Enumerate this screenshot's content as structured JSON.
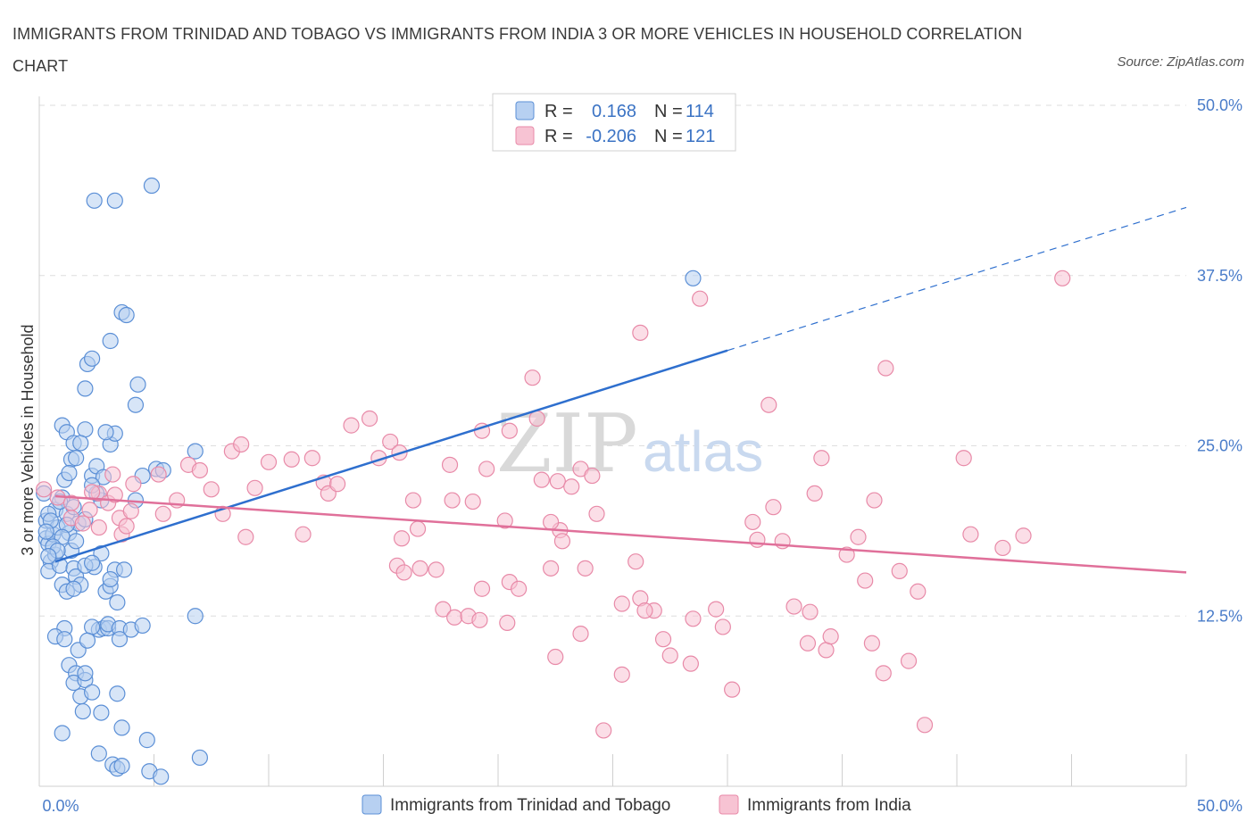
{
  "title": "IMMIGRANTS FROM TRINIDAD AND TOBAGO VS IMMIGRANTS FROM INDIA 3 OR MORE VEHICLES IN HOUSEHOLD CORRELATION CHART",
  "source": "Source: ZipAtlas.com",
  "watermark": {
    "zip": "ZIP",
    "atlas": "atlas"
  },
  "colors": {
    "blue": "#5b8fd6",
    "blue_fill": "#b7d0f1",
    "blue_line": "#2e6fce",
    "pink": "#e88aa8",
    "pink_fill": "#f7c3d3",
    "pink_line": "#e0709a"
  },
  "legend": {
    "r_label": "R =",
    "n_label": "N =",
    "items": [
      {
        "r": "0.168",
        "n": "114"
      },
      {
        "r": "-0.206",
        "n": "121"
      }
    ]
  },
  "chart_data": {
    "type": "scatter",
    "xlabel": "",
    "ylabel": "3 or more Vehicles in Household",
    "xlim": [
      0,
      50
    ],
    "ylim": [
      0,
      50
    ],
    "x_ticks": [
      "0.0%",
      "50.0%"
    ],
    "y_ticks": [
      "12.5%",
      "25.0%",
      "37.5%",
      "50.0%"
    ],
    "series": [
      {
        "name": "Immigrants from Trinidad and Tobago",
        "color": "#5b8fd6",
        "trend": {
          "x0": 0.7,
          "y0": 16.5,
          "x1": 30,
          "y1": 32,
          "dash_to_x": 50,
          "dash_to_y": 42.5
        },
        "points": [
          [
            0.3,
            19.5
          ],
          [
            0.3,
            18.2
          ],
          [
            0.4,
            17.8
          ],
          [
            0.5,
            16.5
          ],
          [
            0.4,
            15.8
          ],
          [
            0.6,
            18.5
          ],
          [
            0.7,
            20.3
          ],
          [
            0.8,
            19.0
          ],
          [
            0.7,
            17.0
          ],
          [
            0.9,
            16.2
          ],
          [
            1.0,
            21.2
          ],
          [
            1.1,
            22.5
          ],
          [
            1.2,
            20.0
          ],
          [
            1.3,
            18.6
          ],
          [
            1.4,
            17.3
          ],
          [
            1.5,
            16.0
          ],
          [
            1.6,
            15.4
          ],
          [
            1.0,
            14.8
          ],
          [
            1.2,
            14.3
          ],
          [
            1.7,
            19.3
          ],
          [
            1.0,
            26.5
          ],
          [
            1.2,
            26.0
          ],
          [
            1.5,
            25.2
          ],
          [
            1.4,
            24.0
          ],
          [
            1.6,
            24.1
          ],
          [
            2.0,
            26.2
          ],
          [
            1.8,
            25.2
          ],
          [
            2.0,
            29.2
          ],
          [
            2.1,
            31.0
          ],
          [
            2.3,
            31.4
          ],
          [
            1.3,
            23.0
          ],
          [
            2.3,
            22.8
          ],
          [
            2.5,
            23.5
          ],
          [
            2.8,
            22.7
          ],
          [
            3.1,
            25.1
          ],
          [
            3.3,
            25.9
          ],
          [
            3.1,
            32.7
          ],
          [
            3.6,
            34.8
          ],
          [
            3.8,
            34.6
          ],
          [
            4.3,
            29.5
          ],
          [
            4.2,
            28.0
          ],
          [
            4.2,
            21.0
          ],
          [
            4.5,
            22.8
          ],
          [
            5.1,
            23.3
          ],
          [
            5.4,
            23.2
          ],
          [
            6.8,
            24.6
          ],
          [
            2.9,
            26.0
          ],
          [
            2.4,
            16.1
          ],
          [
            2.7,
            17.1
          ],
          [
            3.3,
            15.9
          ],
          [
            2.9,
            14.3
          ],
          [
            3.1,
            14.7
          ],
          [
            3.4,
            13.5
          ],
          [
            3.1,
            15.2
          ],
          [
            2.0,
            16.2
          ],
          [
            1.8,
            14.8
          ],
          [
            1.5,
            14.5
          ],
          [
            1.1,
            11.6
          ],
          [
            0.7,
            11.0
          ],
          [
            1.1,
            10.8
          ],
          [
            1.7,
            10.0
          ],
          [
            1.3,
            8.9
          ],
          [
            1.6,
            8.3
          ],
          [
            1.5,
            7.6
          ],
          [
            2.0,
            7.8
          ],
          [
            2.0,
            8.3
          ],
          [
            1.8,
            6.6
          ],
          [
            1.9,
            5.5
          ],
          [
            2.7,
            5.4
          ],
          [
            2.6,
            11.5
          ],
          [
            2.8,
            11.6
          ],
          [
            3.0,
            11.6
          ],
          [
            3.0,
            11.9
          ],
          [
            3.5,
            11.6
          ],
          [
            3.5,
            10.8
          ],
          [
            4.0,
            11.5
          ],
          [
            4.5,
            11.8
          ],
          [
            3.4,
            6.8
          ],
          [
            3.6,
            4.3
          ],
          [
            4.7,
            3.4
          ],
          [
            1.0,
            3.9
          ],
          [
            2.6,
            2.4
          ],
          [
            3.2,
            1.6
          ],
          [
            3.4,
            1.3
          ],
          [
            3.6,
            1.5
          ],
          [
            4.8,
            1.1
          ],
          [
            5.3,
            0.7
          ],
          [
            7.0,
            2.1
          ],
          [
            6.8,
            12.5
          ],
          [
            2.3,
            11.7
          ],
          [
            2.1,
            10.7
          ],
          [
            2.3,
            6.9
          ],
          [
            2.3,
            16.4
          ],
          [
            3.7,
            15.9
          ],
          [
            2.7,
            21.0
          ],
          [
            2.5,
            21.5
          ],
          [
            2.3,
            22.1
          ],
          [
            1.5,
            20.5
          ],
          [
            0.9,
            20.9
          ],
          [
            0.2,
            21.5
          ],
          [
            2.4,
            43.0
          ],
          [
            3.3,
            43.0
          ],
          [
            4.9,
            44.1
          ],
          [
            28.5,
            37.3
          ],
          [
            0.4,
            20.0
          ],
          [
            0.5,
            19.5
          ],
          [
            0.3,
            18.7
          ],
          [
            1.2,
            19.2
          ],
          [
            1.0,
            18.3
          ],
          [
            0.6,
            17.6
          ],
          [
            1.6,
            18.0
          ],
          [
            0.8,
            17.3
          ],
          [
            2.0,
            19.6
          ],
          [
            0.4,
            16.9
          ]
        ]
      },
      {
        "name": "Immigrants from India",
        "color": "#e88aa8",
        "trend": {
          "x0": 0.7,
          "y0": 21.3,
          "x1": 50,
          "y1": 15.7
        },
        "points": [
          [
            0.2,
            21.8
          ],
          [
            0.8,
            21.2
          ],
          [
            1.4,
            20.8
          ],
          [
            2.2,
            20.3
          ],
          [
            2.6,
            21.5
          ],
          [
            1.4,
            19.7
          ],
          [
            1.9,
            19.3
          ],
          [
            2.6,
            19.0
          ],
          [
            3.5,
            19.7
          ],
          [
            4.0,
            20.2
          ],
          [
            3.0,
            20.8
          ],
          [
            4.1,
            22.2
          ],
          [
            3.2,
            22.9
          ],
          [
            2.3,
            21.6
          ],
          [
            3.3,
            21.4
          ],
          [
            3.6,
            18.5
          ],
          [
            3.8,
            19.1
          ],
          [
            5.2,
            22.9
          ],
          [
            5.4,
            20.0
          ],
          [
            6.0,
            21.0
          ],
          [
            6.5,
            23.6
          ],
          [
            7.0,
            23.2
          ],
          [
            7.5,
            21.8
          ],
          [
            8.0,
            20.0
          ],
          [
            8.4,
            24.6
          ],
          [
            8.8,
            25.1
          ],
          [
            9.4,
            21.9
          ],
          [
            9.0,
            18.3
          ],
          [
            10.0,
            23.8
          ],
          [
            11.0,
            24.0
          ],
          [
            11.5,
            18.5
          ],
          [
            11.9,
            24.1
          ],
          [
            12.4,
            22.3
          ],
          [
            12.6,
            21.5
          ],
          [
            13.6,
            26.5
          ],
          [
            13.0,
            22.2
          ],
          [
            14.4,
            27.0
          ],
          [
            14.8,
            24.1
          ],
          [
            15.3,
            25.3
          ],
          [
            15.7,
            24.5
          ],
          [
            15.8,
            18.2
          ],
          [
            16.5,
            18.9
          ],
          [
            16.3,
            21.0
          ],
          [
            15.6,
            16.2
          ],
          [
            15.9,
            15.7
          ],
          [
            16.6,
            16.0
          ],
          [
            17.9,
            23.6
          ],
          [
            18.0,
            21.0
          ],
          [
            18.9,
            20.9
          ],
          [
            19.3,
            26.1
          ],
          [
            19.5,
            23.3
          ],
          [
            20.3,
            19.5
          ],
          [
            20.5,
            26.1
          ],
          [
            21.5,
            30.0
          ],
          [
            21.7,
            27.0
          ],
          [
            21.9,
            22.5
          ],
          [
            22.6,
            22.4
          ],
          [
            23.6,
            23.3
          ],
          [
            24.1,
            22.8
          ],
          [
            23.2,
            22.0
          ],
          [
            24.3,
            20.0
          ],
          [
            22.7,
            18.8
          ],
          [
            22.3,
            19.4
          ],
          [
            22.8,
            18.0
          ],
          [
            23.8,
            16.0
          ],
          [
            22.3,
            16.0
          ],
          [
            20.5,
            15.0
          ],
          [
            19.3,
            14.5
          ],
          [
            17.3,
            15.9
          ],
          [
            17.6,
            13.0
          ],
          [
            18.1,
            12.4
          ],
          [
            18.7,
            12.5
          ],
          [
            19.2,
            12.2
          ],
          [
            20.4,
            12.0
          ],
          [
            20.9,
            14.5
          ],
          [
            22.5,
            9.5
          ],
          [
            23.6,
            11.2
          ],
          [
            25.4,
            13.4
          ],
          [
            26.0,
            16.5
          ],
          [
            26.2,
            13.8
          ],
          [
            26.8,
            12.9
          ],
          [
            27.2,
            10.8
          ],
          [
            27.5,
            9.6
          ],
          [
            28.4,
            9.0
          ],
          [
            28.5,
            12.3
          ],
          [
            29.5,
            13.0
          ],
          [
            29.8,
            11.7
          ],
          [
            30.2,
            7.1
          ],
          [
            31.3,
            18.1
          ],
          [
            31.8,
            28.0
          ],
          [
            32.4,
            18.0
          ],
          [
            32.9,
            13.2
          ],
          [
            33.5,
            10.5
          ],
          [
            34.3,
            10.0
          ],
          [
            34.5,
            11.0
          ],
          [
            35.2,
            17.0
          ],
          [
            35.7,
            18.3
          ],
          [
            36.4,
            21.0
          ],
          [
            36.9,
            30.7
          ],
          [
            37.5,
            15.8
          ],
          [
            38.3,
            14.3
          ],
          [
            38.6,
            4.5
          ],
          [
            40.3,
            24.1
          ],
          [
            40.6,
            18.5
          ],
          [
            26.2,
            33.3
          ],
          [
            28.8,
            35.8
          ],
          [
            32.0,
            20.5
          ],
          [
            33.8,
            21.5
          ],
          [
            36.3,
            10.5
          ],
          [
            37.9,
            9.2
          ],
          [
            44.6,
            37.3
          ],
          [
            34.1,
            24.1
          ],
          [
            36.0,
            15.1
          ],
          [
            42.9,
            18.4
          ],
          [
            42.0,
            17.5
          ],
          [
            36.8,
            8.3
          ],
          [
            33.6,
            12.8
          ],
          [
            31.1,
            19.4
          ],
          [
            24.6,
            4.1
          ],
          [
            25.4,
            8.2
          ],
          [
            26.4,
            12.9
          ]
        ]
      }
    ]
  }
}
